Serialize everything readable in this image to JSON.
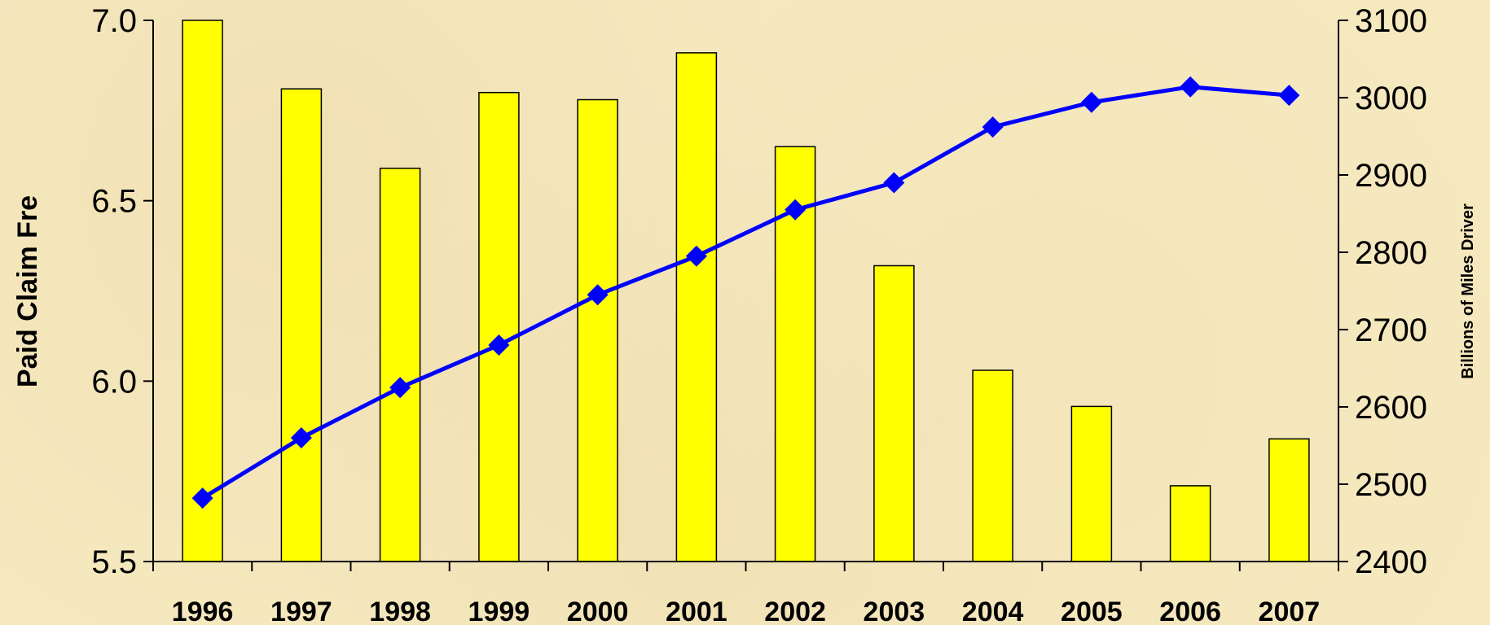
{
  "chart_data": {
    "type": "bar",
    "categories": [
      "1996",
      "1997",
      "1998",
      "1999",
      "2000",
      "2001",
      "2002",
      "2003",
      "2004",
      "2005",
      "2006",
      "2007"
    ],
    "series": [
      {
        "type": "bar",
        "axis": "left",
        "color": "#ffff00",
        "values": [
          7.0,
          6.81,
          6.59,
          6.8,
          6.78,
          6.91,
          6.65,
          6.32,
          6.03,
          5.93,
          5.71,
          5.84
        ]
      },
      {
        "type": "line",
        "axis": "right",
        "color": "#0000ff",
        "marker": "diamond",
        "values": [
          2482,
          2560,
          2625,
          2680,
          2745,
          2795,
          2855,
          2890,
          2962,
          2994,
          3014,
          3003
        ]
      }
    ],
    "ylabel": "Paid Claim Fre",
    "y2label": "Billions of Miles Driver",
    "ylim": [
      5.5,
      7.0
    ],
    "y2lim": [
      2400,
      3100
    ],
    "yticks": [
      "5.5",
      "6.0",
      "6.5",
      "7.0"
    ],
    "y2ticks": [
      "2400",
      "2500",
      "2600",
      "2700",
      "2800",
      "2900",
      "3000",
      "3100"
    ],
    "grid": false,
    "legend": "none"
  }
}
